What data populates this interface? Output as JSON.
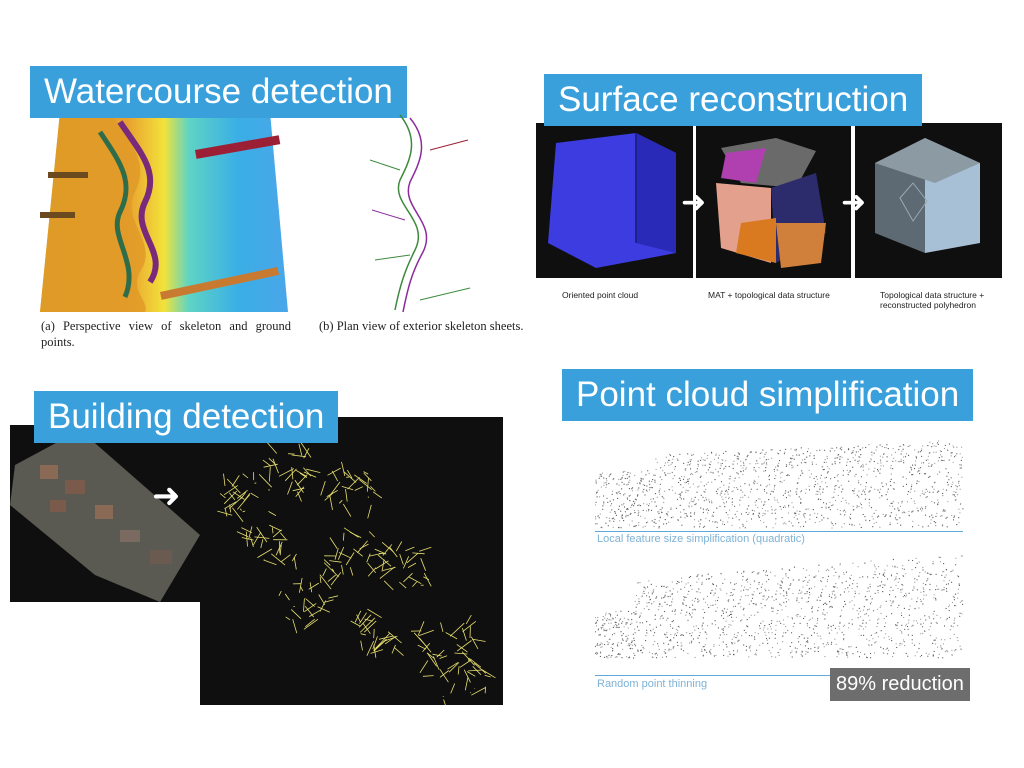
{
  "watercourse": {
    "title": "Watercourse detection",
    "caption_a": "(a) Perspective view of skeleton and ground points.",
    "caption_b": "(b) Plan view of exterior skeleton sheets."
  },
  "surface": {
    "title": "Surface reconstruction",
    "captions": [
      "Oriented point cloud",
      "MAT + topological data structure",
      "Topological data structure + reconstructed polyhedron"
    ]
  },
  "building": {
    "title": "Building detection"
  },
  "simplification": {
    "title": "Point cloud simplification",
    "caption_top": "Local feature size simplification (quadratic)",
    "caption_bottom": "Random point thinning",
    "badge": "89% reduction"
  },
  "colors": {
    "banner": "#3aa0dc",
    "badge": "#6d6d6d",
    "building_lines": "#e8e070"
  }
}
